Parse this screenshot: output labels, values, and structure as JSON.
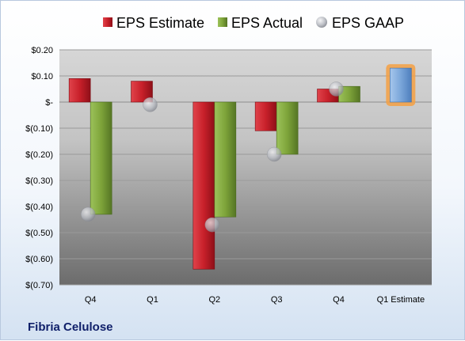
{
  "footer": {
    "company": "Fibria Celulose"
  },
  "chart_data": {
    "type": "bar",
    "categories": [
      "Q4",
      "Q1",
      "Q2",
      "Q3",
      "Q4",
      "Q1 Estimate"
    ],
    "ylim": [
      -0.7,
      0.2
    ],
    "yticks": [
      0.2,
      0.1,
      0.0,
      -0.1,
      -0.2,
      -0.3,
      -0.4,
      -0.5,
      -0.6,
      -0.7
    ],
    "ytick_labels": [
      "$0.20",
      "$0.10",
      "$-",
      "$(0.10)",
      "$(0.20)",
      "$(0.30)",
      "$(0.40)",
      "$(0.50)",
      "$(0.60)",
      "$(0.70)"
    ],
    "grid": true,
    "legend_position": "top",
    "series": [
      {
        "name": "EPS Estimate",
        "type": "bar",
        "color": "#c8202a",
        "values": [
          0.09,
          0.08,
          -0.64,
          -0.11,
          0.05,
          null
        ]
      },
      {
        "name": "EPS Actual",
        "type": "bar",
        "color": "#7ea43a",
        "values": [
          -0.43,
          null,
          -0.44,
          -0.2,
          0.06,
          null
        ]
      },
      {
        "name": "EPS GAAP",
        "type": "scatter",
        "color": "#b0b4bc",
        "values": [
          -0.43,
          -0.01,
          -0.47,
          -0.2,
          0.05,
          null
        ]
      }
    ],
    "estimate_bar": {
      "category": "Q1 Estimate",
      "value": 0.13,
      "color": "#7aa6da",
      "highlight": "#f5a043"
    }
  }
}
